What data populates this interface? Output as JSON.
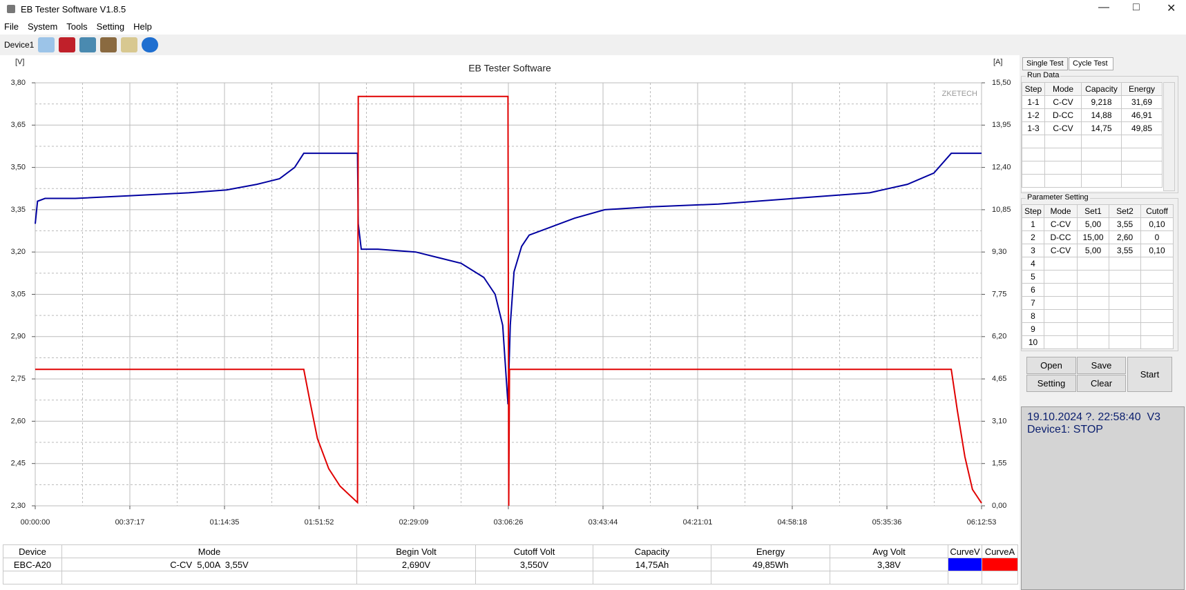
{
  "window": {
    "title": "EB Tester Software V1.8.5"
  },
  "menu": [
    "File",
    "System",
    "Tools",
    "Setting",
    "Help"
  ],
  "toolbar": {
    "device": "Device1"
  },
  "chart_data": {
    "type": "line",
    "title": "EB Tester Software",
    "y_label": "[V]",
    "y2_label": "[A]",
    "watermark": "ZKETECH",
    "xlim": [
      0,
      22373
    ],
    "xticks": [
      {
        "value": 0,
        "label": "00:00:00"
      },
      {
        "value": 2237,
        "label": "00:37:17"
      },
      {
        "value": 4475,
        "label": "01:14:35"
      },
      {
        "value": 6712,
        "label": "01:51:52"
      },
      {
        "value": 8949,
        "label": "02:29:09"
      },
      {
        "value": 11186,
        "label": "03:06:26"
      },
      {
        "value": 13424,
        "label": "03:43:44"
      },
      {
        "value": 15661,
        "label": "04:21:01"
      },
      {
        "value": 17898,
        "label": "04:58:18"
      },
      {
        "value": 20136,
        "label": "05:35:36"
      },
      {
        "value": 22373,
        "label": "06:12:53"
      }
    ],
    "ylim": [
      2.3,
      3.8
    ],
    "yticks": [
      {
        "value": 2.3,
        "label": "2,30"
      },
      {
        "value": 2.45,
        "label": "2,45"
      },
      {
        "value": 2.6,
        "label": "2,60"
      },
      {
        "value": 2.75,
        "label": "2,75"
      },
      {
        "value": 2.9,
        "label": "2,90"
      },
      {
        "value": 3.05,
        "label": "3,05"
      },
      {
        "value": 3.2,
        "label": "3,20"
      },
      {
        "value": 3.35,
        "label": "3,35"
      },
      {
        "value": 3.5,
        "label": "3,50"
      },
      {
        "value": 3.65,
        "label": "3,65"
      },
      {
        "value": 3.8,
        "label": "3,80"
      }
    ],
    "y2lim": [
      0,
      15.5
    ],
    "y2ticks": [
      {
        "value": 0,
        "label": "0,00"
      },
      {
        "value": 1.55,
        "label": "1,55"
      },
      {
        "value": 3.1,
        "label": "3,10"
      },
      {
        "value": 4.65,
        "label": "4,65"
      },
      {
        "value": 6.2,
        "label": "6,20"
      },
      {
        "value": 7.75,
        "label": "7,75"
      },
      {
        "value": 9.3,
        "label": "9,30"
      },
      {
        "value": 10.85,
        "label": "10,85"
      },
      {
        "value": 12.4,
        "label": "12,40"
      },
      {
        "value": 13.95,
        "label": "13,95"
      },
      {
        "value": 15.5,
        "label": "15,50"
      }
    ],
    "grid": true,
    "series": [
      {
        "color": "#0000a0",
        "x": [
          0,
          54,
          232,
          948,
          2289,
          3630,
          4525,
          5240,
          5777,
          6134,
          6349,
          7619,
          7637,
          7708,
          8101,
          8996,
          9532,
          10068,
          10605,
          10873,
          11052,
          11177,
          11231,
          11320,
          11499,
          11678,
          12036,
          12751,
          13466,
          14540,
          16149,
          17938,
          19726,
          20620,
          21246,
          21657,
          22373
        ],
        "values": [
          3.3,
          3.38,
          3.39,
          3.39,
          3.4,
          3.41,
          3.42,
          3.44,
          3.46,
          3.5,
          3.55,
          3.55,
          3.3,
          3.21,
          3.21,
          3.2,
          3.18,
          3.16,
          3.11,
          3.05,
          2.94,
          2.66,
          2.94,
          3.13,
          3.22,
          3.26,
          3.28,
          3.32,
          3.35,
          3.36,
          3.37,
          3.39,
          3.41,
          3.44,
          3.48,
          3.55,
          3.55
        ]
      },
      {
        "color": "#e00000",
        "axis": "y2",
        "x": [
          0,
          6349,
          6492,
          6671,
          6939,
          7207,
          7619,
          7637,
          11177,
          11195,
          11213,
          21657,
          21800,
          21979,
          22158,
          22373
        ],
        "values": [
          5.0,
          5.0,
          3.85,
          2.47,
          1.36,
          0.72,
          0.12,
          15.0,
          15.0,
          0,
          5.0,
          5.0,
          3.5,
          1.8,
          0.6,
          0.1
        ]
      }
    ]
  },
  "tabs": [
    "Single Test",
    "Cycle Test"
  ],
  "run_data": {
    "title": "Run Data",
    "columns": [
      "Step",
      "Mode",
      "Capacity",
      "Energy"
    ],
    "rows": [
      [
        "1-1",
        "C-CV",
        "9,218",
        "31,69"
      ],
      [
        "1-2",
        "D-CC",
        "14,88",
        "46,91"
      ],
      [
        "1-3",
        "C-CV",
        "14,75",
        "49,85"
      ]
    ]
  },
  "parameter_setting": {
    "title": "Parameter Setting",
    "columns": [
      "Step",
      "Mode",
      "Set1",
      "Set2",
      "Cutoff"
    ],
    "rows": [
      [
        "1",
        "C-CV",
        "5,00",
        "3,55",
        "0,10"
      ],
      [
        "2",
        "D-CC",
        "15,00",
        "2,60",
        "0"
      ],
      [
        "3",
        "C-CV",
        "5,00",
        "3,55",
        "0,10"
      ],
      [
        "4"
      ],
      [
        "5"
      ],
      [
        "6"
      ],
      [
        "7"
      ],
      [
        "8"
      ],
      [
        "9"
      ],
      [
        "10"
      ]
    ]
  },
  "buttons": [
    "Open",
    "Save",
    "Start",
    "Setting",
    "Clear"
  ],
  "status": [
    "19.10.2024 ?. 22:58:40  V3",
    "Device1: STOP"
  ],
  "summary_table": {
    "columns": [
      "Device",
      "Mode",
      "Begin Volt",
      "Cutoff Volt",
      "Capacity",
      "Energy",
      "Avg Volt",
      "CurveV",
      "CurveA"
    ],
    "rows": [
      [
        "EBC-A20",
        "C-CV  5,00A  3,55V",
        "2,690V",
        "3,550V",
        "14,75Ah",
        "49,85Wh",
        "3,38V"
      ]
    ],
    "curve_colors": [
      "#0000ff",
      "#ff0000"
    ]
  }
}
